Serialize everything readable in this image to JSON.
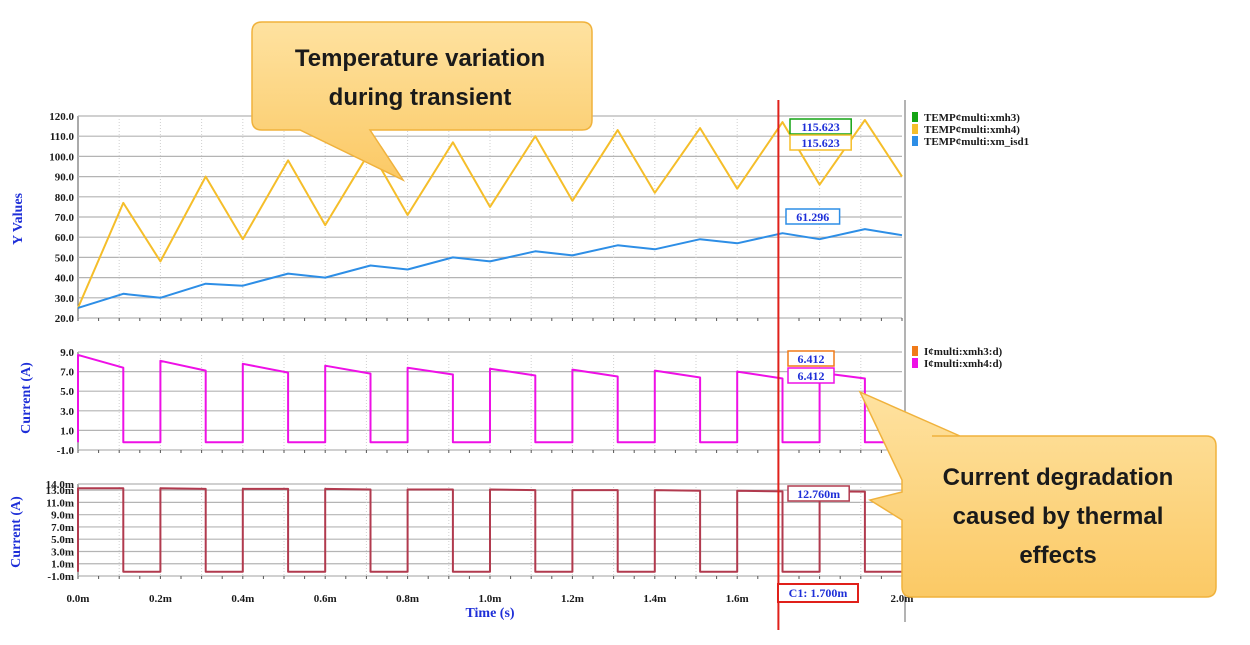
{
  "chart_data": [
    {
      "type": "line",
      "ylabel": "Y Values",
      "ylim": [
        20,
        120
      ],
      "yticks": [
        "120.0",
        "110.0",
        "100.0",
        "90.0",
        "80.0",
        "70.0",
        "60.0",
        "50.0",
        "40.0",
        "30.0",
        "20.0"
      ],
      "xlim_ms": [
        0,
        2.0
      ],
      "grid": true,
      "legend_position": "right",
      "series": [
        {
          "name": "TEMP¢multi:xmh3)",
          "color": "#14a414",
          "x_ms": [],
          "values": []
        },
        {
          "name": "TEMP¢multi:xmh4)",
          "color": "#f5be2a",
          "x_ms": [
            0.0,
            0.11,
            0.2,
            0.31,
            0.4,
            0.51,
            0.6,
            0.71,
            0.8,
            0.91,
            1.0,
            1.11,
            1.2,
            1.31,
            1.4,
            1.51,
            1.6,
            1.71,
            1.8,
            1.91,
            2.0
          ],
          "values": [
            25,
            77,
            48,
            90,
            59,
            98,
            66,
            103,
            71,
            107,
            75,
            110,
            78,
            113,
            82,
            114,
            84,
            117,
            86,
            118,
            90
          ]
        },
        {
          "name": "TEMP¢multi:xm_isd1",
          "color": "#2d8ee6",
          "x_ms": [
            0.0,
            0.11,
            0.2,
            0.31,
            0.4,
            0.51,
            0.6,
            0.71,
            0.8,
            0.91,
            1.0,
            1.11,
            1.2,
            1.31,
            1.4,
            1.51,
            1.6,
            1.71,
            1.8,
            1.91,
            2.0
          ],
          "values": [
            25,
            32,
            30,
            37,
            36,
            42,
            40,
            46,
            44,
            50,
            48,
            53,
            51,
            56,
            54,
            59,
            57,
            62,
            59,
            64,
            61
          ]
        }
      ],
      "markers": [
        {
          "text": "115.623",
          "border": "#14a414"
        },
        {
          "text": "115.623",
          "border": "#f5be2a"
        },
        {
          "text": "61.296",
          "border": "#2d8ee6"
        }
      ]
    },
    {
      "type": "line",
      "ylabel": "Current (A)",
      "ylim": [
        -1.0,
        9.0
      ],
      "yticks": [
        "9.0",
        "7.0",
        "5.0",
        "3.0",
        "1.0",
        "-1.0"
      ],
      "xlim_ms": [
        0,
        2.0
      ],
      "grid": true,
      "legend_position": "right",
      "pulse_period_ms": 0.2,
      "pulse_width_ms": 0.11,
      "series": [
        {
          "name": "I¢multi:xmh3:d)",
          "color": "#f07a18",
          "pulse_start": [],
          "pulse_end": []
        },
        {
          "name": "I¢multi:xmh4:d)",
          "color": "#ee10e6",
          "pulse_start": [
            8.7,
            8.1,
            7.8,
            7.6,
            7.4,
            7.3,
            7.2,
            7.1,
            7.0,
            6.9
          ],
          "pulse_end": [
            7.4,
            7.1,
            6.9,
            6.8,
            6.7,
            6.6,
            6.5,
            6.4,
            6.3,
            6.3
          ],
          "off_value": -0.2
        }
      ],
      "markers": [
        {
          "text": "6.412",
          "border": "#f07a18"
        },
        {
          "text": "6.412",
          "border": "#ee10e6"
        }
      ]
    },
    {
      "type": "line",
      "ylabel": "Current (A)",
      "ylim": [
        -1.0,
        14.0
      ],
      "yticks": [
        "14.0m",
        "13.0m",
        "11.0m",
        "9.0m",
        "7.0m",
        "5.0m",
        "3.0m",
        "1.0m",
        "-1.0m"
      ],
      "ytick_values": [
        14,
        13,
        11,
        9,
        7,
        5,
        3,
        1,
        -1
      ],
      "xlabel": "Time (s)",
      "xticks": [
        "0.0m",
        "0.2m",
        "0.4m",
        "0.6m",
        "0.8m",
        "1.0m",
        "1.2m",
        "1.4m",
        "1.6m",
        "",
        "2.0m"
      ],
      "xlim_ms": [
        0,
        2.0
      ],
      "grid": true,
      "pulse_period_ms": 0.2,
      "pulse_width_ms": 0.11,
      "series": [
        {
          "name": "",
          "color": "#b13a4e",
          "pulse_start": [
            13.3,
            13.3,
            13.2,
            13.2,
            13.1,
            13.1,
            13.0,
            13.0,
            12.9,
            12.8
          ],
          "pulse_end": [
            13.3,
            13.2,
            13.2,
            13.1,
            13.1,
            13.0,
            13.0,
            12.9,
            12.8,
            12.76
          ],
          "off_value": -0.3
        }
      ],
      "markers": [
        {
          "text": "12.760m",
          "border": "#b13a4e"
        }
      ]
    }
  ],
  "cursor": {
    "label": "C1: 1.700m",
    "x_ms": 1.7,
    "color": "#e0201a"
  },
  "callouts": {
    "top": {
      "lines": [
        "Temperature variation",
        "during transient"
      ]
    },
    "right": {
      "lines": [
        "Current degradation",
        "caused by thermal",
        "effects"
      ]
    }
  },
  "colors": {
    "callout_fill": "#fdd37b",
    "callout_stroke": "#f0b23c",
    "grid": "#b4b4b4",
    "axis_title": "#1e2fd8"
  }
}
